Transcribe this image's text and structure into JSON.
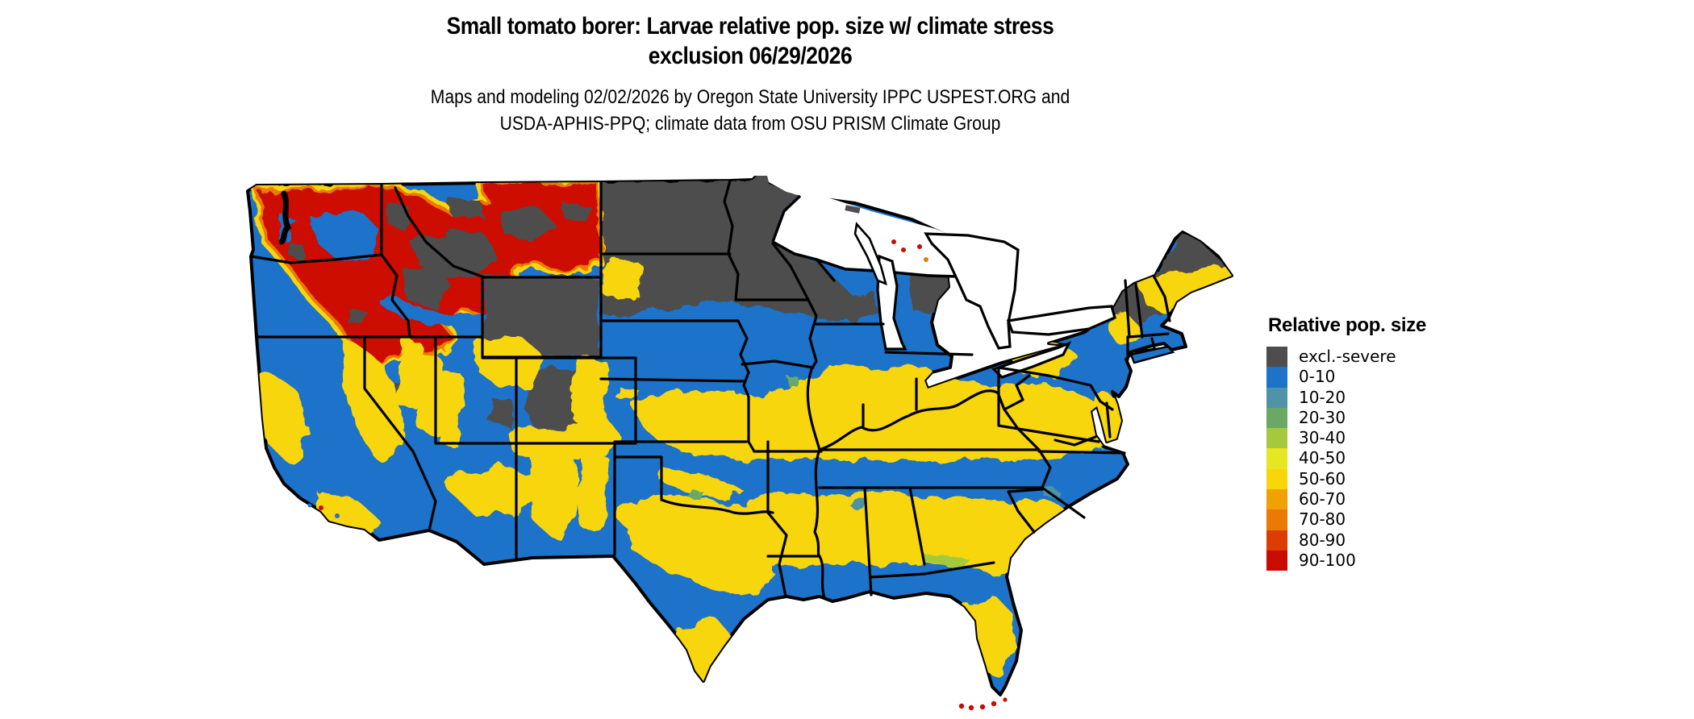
{
  "header": {
    "title_line1": "Small tomato borer: Larvae relative pop. size w/ climate stress",
    "title_line2": "exclusion 06/29/2026",
    "subtitle_line1": "Maps and modeling 02/02/2026 by Oregon State University IPPC USPEST.ORG and",
    "subtitle_line2": "USDA-APHIS-PPQ; climate data from OSU PRISM Climate Group"
  },
  "legend": {
    "title": "Relative pop. size",
    "entries": [
      {
        "label": "excl.-severe",
        "color": "#4d4d4d"
      },
      {
        "label": "0-10",
        "color": "#1d73c9"
      },
      {
        "label": "10-20",
        "color": "#4e93a7"
      },
      {
        "label": "20-30",
        "color": "#69a965"
      },
      {
        "label": "30-40",
        "color": "#a5c93c"
      },
      {
        "label": "40-50",
        "color": "#e5e723"
      },
      {
        "label": "50-60",
        "color": "#f8d60a"
      },
      {
        "label": "60-70",
        "color": "#f2a104"
      },
      {
        "label": "70-80",
        "color": "#eb7a05"
      },
      {
        "label": "80-90",
        "color": "#dc3d02"
      },
      {
        "label": "90-100",
        "color": "#cc0b00"
      }
    ]
  }
}
